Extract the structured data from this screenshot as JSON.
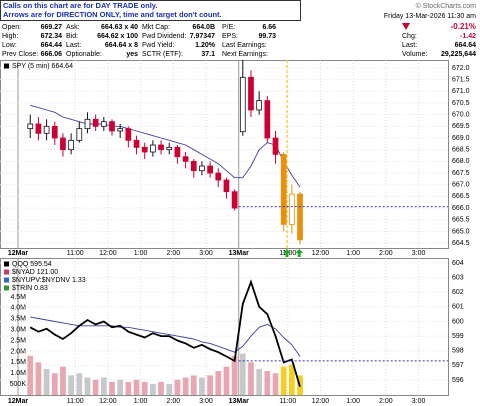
{
  "notice": [
    "Calls on this chart are for DAY TRADE only.",
    "Arrows are for DIRECTION ONLY, time and target don't count."
  ],
  "watermark": "© StockCharts.com",
  "date": "Friday  13-Mar-2026  11:30 am",
  "change_pct": "-0.21%",
  "quote_rows": [
    [
      "Chg:",
      "-1.42"
    ],
    [
      "Last:",
      "664.64"
    ],
    [
      "Volume:",
      "29,225,644"
    ]
  ],
  "info": {
    "rows": [
      [
        [
          "Open:",
          "669.27"
        ],
        [
          "Ask:",
          "664.63 x 40"
        ],
        [
          "Mkt Cap:",
          "664.0B"
        ],
        [
          "P/E:",
          "6.66"
        ]
      ],
      [
        [
          "High:",
          "672.34"
        ],
        [
          "Bid:",
          "664.62 x 100"
        ],
        [
          "Fwd Dividend:",
          "7.97347"
        ],
        [
          "EPS:",
          "99.73"
        ]
      ],
      [
        [
          "Low:",
          "664.44"
        ],
        [
          "Last:",
          "664.64 x 8"
        ],
        [
          "Fwd Yield:",
          "1.20%"
        ],
        [
          "Last Earnings:",
          ""
        ]
      ],
      [
        [
          "Prev Close:",
          "666.06"
        ],
        [
          "Optionable:",
          "yes"
        ],
        [
          "SCTR (ETF):",
          "37.1"
        ],
        [
          "Next Earnings:",
          ""
        ]
      ]
    ]
  },
  "chart_data": [
    {
      "type": "candlestick",
      "legend": "SPY (5 min) 664.64",
      "legend_color": "#000000",
      "x": [
        0,
        1,
        2,
        3,
        4,
        5,
        6,
        7,
        8,
        9,
        10,
        11,
        12,
        13,
        14,
        15,
        16,
        17,
        18,
        19,
        20,
        21,
        22,
        23,
        24,
        25,
        26,
        27,
        28,
        29,
        30,
        31,
        32,
        33
      ],
      "open": [
        669.4,
        669.6,
        669.2,
        669.5,
        669.0,
        668.5,
        668.9,
        669.4,
        669.8,
        669.5,
        669.7,
        669.3,
        669.4,
        668.9,
        668.6,
        668.4,
        668.7,
        668.5,
        668.6,
        668.2,
        668.0,
        667.6,
        667.8,
        667.5,
        667.2,
        666.7,
        669.27,
        671.6,
        670.2,
        670.6,
        669.0,
        668.3,
        665.3,
        666.6
      ],
      "high": [
        670.0,
        669.9,
        669.8,
        669.7,
        669.2,
        669.2,
        669.7,
        670.1,
        670.0,
        669.9,
        669.8,
        669.6,
        669.5,
        669.1,
        668.8,
        668.9,
        668.9,
        668.8,
        668.7,
        668.4,
        668.1,
        668.0,
        668.0,
        667.7,
        667.3,
        666.8,
        672.34,
        671.9,
        671.0,
        670.8,
        669.3,
        668.4,
        667.0,
        666.7
      ],
      "low": [
        669.0,
        668.9,
        668.9,
        668.7,
        668.2,
        668.3,
        668.8,
        669.2,
        669.3,
        669.3,
        669.1,
        669.0,
        668.6,
        668.3,
        668.1,
        668.2,
        668.3,
        668.3,
        667.9,
        667.7,
        667.3,
        667.4,
        667.3,
        666.9,
        666.4,
        665.9,
        669.1,
        669.9,
        670.0,
        668.8,
        667.9,
        665.0,
        664.9,
        664.44
      ],
      "close": [
        669.6,
        669.2,
        669.5,
        669.0,
        668.5,
        668.9,
        669.4,
        669.8,
        669.5,
        669.7,
        669.3,
        669.4,
        668.9,
        668.6,
        668.4,
        668.7,
        668.5,
        668.6,
        668.2,
        668.0,
        667.6,
        667.8,
        667.5,
        667.2,
        666.7,
        666.0,
        671.6,
        670.2,
        670.6,
        669.0,
        668.3,
        665.3,
        666.6,
        664.64
      ],
      "candle_colors": [
        "#111111",
        "#cc0033",
        "#111111",
        "#cc0033",
        "#cc0033",
        "#111111",
        "#111111",
        "#111111",
        "#cc0033",
        "#111111",
        "#cc0033",
        "#111111",
        "#cc0033",
        "#cc0033",
        "#cc0033",
        "#111111",
        "#cc0033",
        "#111111",
        "#cc0033",
        "#cc0033",
        "#cc0033",
        "#111111",
        "#cc0033",
        "#cc0033",
        "#cc0033",
        "#cc0033",
        "#111111",
        "#cc0033",
        "#111111",
        "#cc0033",
        "#cc0033",
        "#e8900c",
        "#e8900c",
        "#e8900c"
      ],
      "series": [
        {
          "color": "#3b3fa0",
          "values": [
            670.4,
            670.3,
            670.2,
            670.1,
            669.9,
            669.8,
            669.7,
            669.6,
            669.6,
            669.6,
            669.5,
            669.5,
            669.4,
            669.3,
            669.2,
            669.1,
            669.0,
            668.9,
            668.8,
            668.7,
            668.5,
            668.3,
            668.1,
            667.9,
            667.6,
            667.3,
            667.3,
            667.8,
            668.5,
            668.8,
            668.7,
            668.0,
            667.4,
            666.9
          ]
        }
      ],
      "reference_line": 666.06,
      "reference_color": "#3333bb",
      "marker_x": 31.4,
      "arrows": [
        31.4,
        32.9
      ],
      "arrow_color": "#22aa22",
      "xlim": [
        -3.7,
        51.1
      ],
      "xticks": [
        {
          "value": -1.5,
          "label": "12Mar"
        },
        {
          "value": 5.5,
          "label": "11:00"
        },
        {
          "value": 9.5,
          "label": "12:00"
        },
        {
          "value": 13.5,
          "label": "1:00"
        },
        {
          "value": 17.5,
          "label": "2:00"
        },
        {
          "value": 21.5,
          "label": "3:00"
        },
        {
          "value": 25.5,
          "label": "13Mar"
        },
        {
          "value": 31.5,
          "label": "11:00"
        },
        {
          "value": 35.5,
          "label": "12:00"
        },
        {
          "value": 39.5,
          "label": "1:00"
        },
        {
          "value": 43.5,
          "label": "2:00"
        },
        {
          "value": 47.5,
          "label": "3:00"
        }
      ],
      "ylim": [
        664.29,
        672.34
      ],
      "yticks": [
        664.5,
        {
          "value": 665,
          "label": "665.0"
        },
        665.5,
        {
          "value": 666,
          "label": "666.0"
        },
        666.5,
        {
          "value": 667,
          "label": "667.0"
        },
        667.5,
        {
          "value": 668,
          "label": "668.0"
        },
        668.5,
        {
          "value": 669,
          "label": "669.0"
        },
        669.5,
        {
          "value": 670,
          "label": "670.0"
        },
        670.5,
        {
          "value": 671,
          "label": "671.0"
        },
        671.5,
        {
          "value": 672,
          "label": "672.0"
        }
      ],
      "grid": true
    },
    {
      "type": "line",
      "x": [
        0,
        1,
        2,
        3,
        4,
        5,
        6,
        7,
        8,
        9,
        10,
        11,
        12,
        13,
        14,
        15,
        16,
        17,
        18,
        19,
        20,
        21,
        22,
        23,
        24,
        25,
        26,
        27,
        28,
        29,
        30,
        31,
        32,
        33
      ],
      "series": [
        {
          "type": "bar",
          "colors": [
            "#e8a6b0",
            "#e8a6b0",
            "#c8c8c8",
            "#e8a6b0",
            "#e8a6b0",
            "#c8c8c8",
            "#c8c8c8",
            "#c8c8c8",
            "#e8a6b0",
            "#c8c8c8",
            "#e8a6b0",
            "#c8c8c8",
            "#e8a6b0",
            "#e8a6b0",
            "#e8a6b0",
            "#c8c8c8",
            "#e8a6b0",
            "#c8c8c8",
            "#e8a6b0",
            "#e8a6b0",
            "#e8a6b0",
            "#c8c8c8",
            "#e8a6b0",
            "#e8a6b0",
            "#e8a6b0",
            "#e8a6b0",
            "#c8c8c8",
            "#e8a6b0",
            "#c8c8c8",
            "#e8a6b0",
            "#e8a6b0",
            "#f0d020",
            "#f0d020",
            "#f0d020"
          ],
          "values": [
            1800000,
            1500000,
            1200000,
            1000000,
            1300000,
            900000,
            1000000,
            800000,
            700000,
            800000,
            600000,
            700000,
            600000,
            700000,
            600000,
            500000,
            600000,
            500000,
            700000,
            800000,
            900000,
            800000,
            900000,
            1100000,
            1300000,
            1800000,
            1900000,
            1500000,
            1200000,
            1100000,
            1000000,
            1300000,
            1400000,
            900000
          ]
        },
        {
          "color": "#3b3fa0",
          "axis": "y2",
          "values": [
            600.3,
            600.2,
            600.1,
            600.0,
            599.9,
            599.8,
            599.7,
            599.7,
            599.7,
            599.7,
            599.7,
            599.6,
            599.6,
            599.5,
            599.4,
            599.3,
            599.2,
            599.1,
            599.0,
            598.9,
            598.8,
            598.6,
            598.5,
            598.3,
            598.1,
            597.9,
            598.3,
            599.0,
            599.6,
            599.8,
            599.5,
            598.9,
            598.4,
            597.6
          ]
        },
        {
          "name": "QQQ 595.54",
          "color": "#000000",
          "axis": "y2",
          "values": [
            599.6,
            599.3,
            599.5,
            599.1,
            598.8,
            599.2,
            599.7,
            600.1,
            599.8,
            600.0,
            599.6,
            599.7,
            599.3,
            599.1,
            598.9,
            599.2,
            599.0,
            599.0,
            598.7,
            598.5,
            598.2,
            598.4,
            598.1,
            597.9,
            597.6,
            597.3,
            601.2,
            602.7,
            601.0,
            600.5,
            599.0,
            597.2,
            597.4,
            595.54
          ]
        }
      ],
      "legend_extra": [
        {
          "name": "$NYAD 121.00",
          "color": "#cc3366"
        },
        {
          "name": "$NYUPV:$NYDNV 1.33",
          "color": "#3366cc"
        },
        {
          "name": "$TRIN 0.83",
          "color": "#339933"
        }
      ],
      "reference_line": 597.3,
      "reference_color": "#3333bb",
      "xlim": [
        -3.7,
        51.1
      ],
      "xticks": [
        {
          "value": -1.5,
          "label": "12Mar"
        },
        {
          "value": 5.5,
          "label": "11:00"
        },
        {
          "value": 9.5,
          "label": "12:00"
        },
        {
          "value": 13.5,
          "label": "1:00"
        },
        {
          "value": 17.5,
          "label": "2:00"
        },
        {
          "value": 21.5,
          "label": "3:00"
        },
        {
          "value": 25.5,
          "label": "13Mar"
        },
        {
          "value": 31.5,
          "label": "11:00"
        },
        {
          "value": 35.5,
          "label": "12:00"
        },
        {
          "value": 39.5,
          "label": "1:00"
        },
        {
          "value": 43.5,
          "label": "2:00"
        },
        {
          "value": 47.5,
          "label": "3:00"
        }
      ],
      "ylim": [
        0,
        6290000
      ],
      "yticks": [
        {
          "value": 500000,
          "label": "500K"
        },
        {
          "value": 1000000,
          "label": "1.0M"
        },
        {
          "value": 1500000,
          "label": "1.5M"
        },
        {
          "value": 2000000,
          "label": "2.0M"
        },
        {
          "value": 2500000,
          "label": "2.5M"
        },
        {
          "value": 3000000,
          "label": "3.0M"
        },
        {
          "value": 3500000,
          "label": "3.5M"
        },
        {
          "value": 4000000,
          "label": "4.0M"
        },
        {
          "value": 4500000,
          "label": "4.5M"
        }
      ],
      "y2lim": [
        594.97,
        604.34
      ],
      "y2ticks": [
        596,
        597,
        598,
        599,
        600,
        601,
        602,
        603,
        604
      ],
      "grid": true
    }
  ]
}
